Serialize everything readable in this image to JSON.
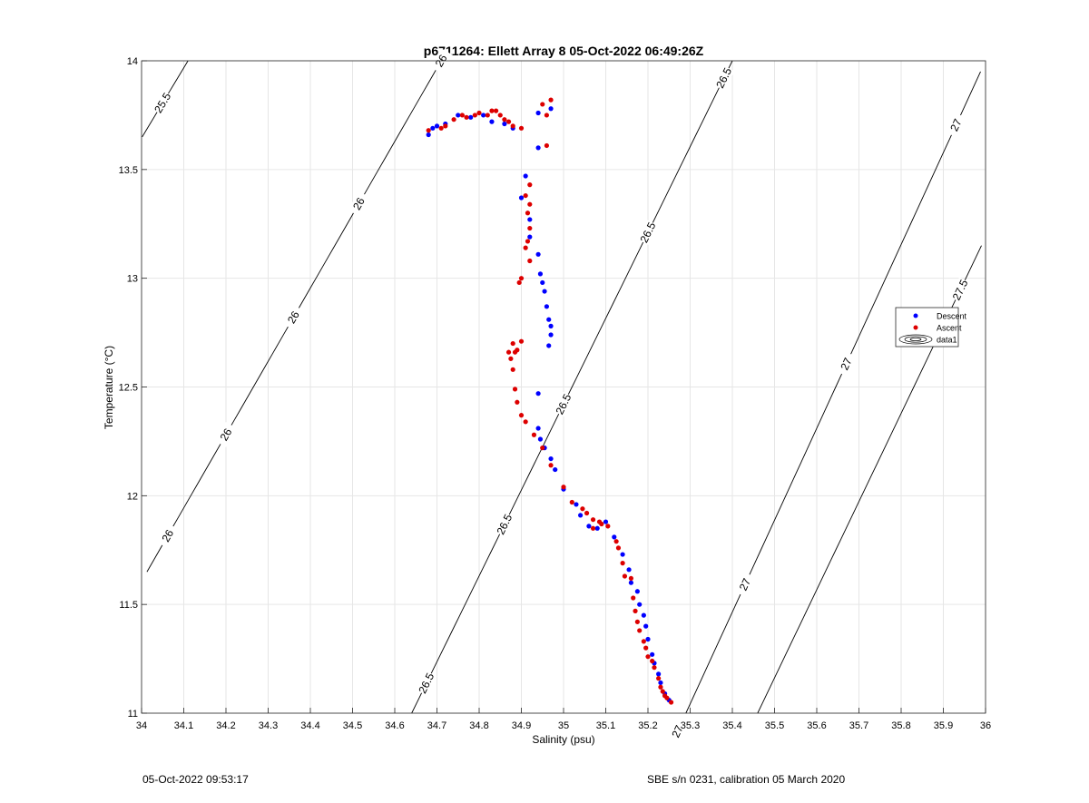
{
  "chart_data": {
    "type": "scatter",
    "title": "p6711264: Ellett Array 8 05-Oct-2022 06:49:26Z",
    "xlabel": "Salinity (psu)",
    "ylabel": "Temperature (°C)",
    "xlim": [
      34,
      36
    ],
    "ylim": [
      11,
      14
    ],
    "x_ticks": [
      34,
      34.1,
      34.2,
      34.3,
      34.4,
      34.5,
      34.6,
      34.7,
      34.8,
      34.9,
      35,
      35.1,
      35.2,
      35.3,
      35.4,
      35.5,
      35.6,
      35.7,
      35.8,
      35.9,
      36
    ],
    "y_ticks": [
      11,
      11.5,
      12,
      12.5,
      13,
      13.5,
      14
    ],
    "grid": true,
    "legend_placement": "right",
    "legend": [
      "Descent",
      "Ascent",
      "data1"
    ],
    "series": [
      {
        "name": "Descent",
        "color": "#0000ff",
        "points": [
          [
            34.68,
            13.66
          ],
          [
            34.69,
            13.69
          ],
          [
            34.7,
            13.7
          ],
          [
            34.72,
            13.71
          ],
          [
            34.75,
            13.75
          ],
          [
            34.78,
            13.74
          ],
          [
            34.81,
            13.75
          ],
          [
            34.83,
            13.72
          ],
          [
            34.86,
            13.71
          ],
          [
            34.88,
            13.69
          ],
          [
            34.94,
            13.76
          ],
          [
            34.97,
            13.78
          ],
          [
            34.94,
            13.6
          ],
          [
            34.91,
            13.47
          ],
          [
            34.9,
            13.37
          ],
          [
            34.92,
            13.27
          ],
          [
            34.92,
            13.19
          ],
          [
            34.94,
            13.11
          ],
          [
            34.945,
            13.02
          ],
          [
            34.95,
            12.98
          ],
          [
            34.955,
            12.94
          ],
          [
            34.96,
            12.87
          ],
          [
            34.965,
            12.81
          ],
          [
            34.97,
            12.78
          ],
          [
            34.97,
            12.74
          ],
          [
            34.965,
            12.69
          ],
          [
            34.94,
            12.47
          ],
          [
            34.94,
            12.31
          ],
          [
            34.945,
            12.26
          ],
          [
            34.955,
            12.22
          ],
          [
            34.97,
            12.17
          ],
          [
            34.98,
            12.12
          ],
          [
            35.0,
            12.03
          ],
          [
            35.03,
            11.96
          ],
          [
            35.04,
            11.91
          ],
          [
            35.06,
            11.86
          ],
          [
            35.08,
            11.85
          ],
          [
            35.1,
            11.88
          ],
          [
            35.12,
            11.81
          ],
          [
            35.14,
            11.73
          ],
          [
            35.155,
            11.66
          ],
          [
            35.16,
            11.6
          ],
          [
            35.175,
            11.56
          ],
          [
            35.18,
            11.5
          ],
          [
            35.19,
            11.45
          ],
          [
            35.195,
            11.4
          ],
          [
            35.2,
            11.34
          ],
          [
            35.21,
            11.27
          ],
          [
            35.215,
            11.23
          ],
          [
            35.225,
            11.18
          ],
          [
            35.23,
            11.14
          ],
          [
            35.24,
            11.09
          ],
          [
            35.25,
            11.06
          ]
        ]
      },
      {
        "name": "Ascent",
        "color": "#dd0000",
        "points": [
          [
            34.68,
            13.68
          ],
          [
            34.71,
            13.69
          ],
          [
            34.72,
            13.7
          ],
          [
            34.74,
            13.73
          ],
          [
            34.76,
            13.75
          ],
          [
            34.77,
            13.74
          ],
          [
            34.79,
            13.75
          ],
          [
            34.8,
            13.76
          ],
          [
            34.82,
            13.75
          ],
          [
            34.83,
            13.77
          ],
          [
            34.84,
            13.77
          ],
          [
            34.85,
            13.75
          ],
          [
            34.86,
            13.73
          ],
          [
            34.87,
            13.72
          ],
          [
            34.88,
            13.7
          ],
          [
            34.9,
            13.69
          ],
          [
            34.95,
            13.8
          ],
          [
            34.97,
            13.82
          ],
          [
            34.96,
            13.75
          ],
          [
            34.96,
            13.61
          ],
          [
            34.92,
            13.43
          ],
          [
            34.91,
            13.38
          ],
          [
            34.92,
            13.34
          ],
          [
            34.915,
            13.3
          ],
          [
            34.92,
            13.23
          ],
          [
            34.915,
            13.17
          ],
          [
            34.91,
            13.14
          ],
          [
            34.92,
            13.08
          ],
          [
            34.9,
            13.0
          ],
          [
            34.895,
            12.98
          ],
          [
            34.87,
            12.66
          ],
          [
            34.88,
            12.7
          ],
          [
            34.875,
            12.63
          ],
          [
            34.885,
            12.66
          ],
          [
            34.89,
            12.67
          ],
          [
            34.9,
            12.71
          ],
          [
            34.88,
            12.58
          ],
          [
            34.885,
            12.49
          ],
          [
            34.89,
            12.43
          ],
          [
            34.9,
            12.37
          ],
          [
            34.91,
            12.34
          ],
          [
            34.93,
            12.28
          ],
          [
            34.95,
            12.22
          ],
          [
            34.97,
            12.14
          ],
          [
            35.0,
            12.04
          ],
          [
            35.02,
            11.97
          ],
          [
            35.045,
            11.94
          ],
          [
            35.055,
            11.92
          ],
          [
            35.07,
            11.89
          ],
          [
            35.085,
            11.88
          ],
          [
            35.07,
            11.85
          ],
          [
            35.09,
            11.87
          ],
          [
            35.105,
            11.86
          ],
          [
            35.125,
            11.79
          ],
          [
            35.13,
            11.76
          ],
          [
            35.14,
            11.69
          ],
          [
            35.145,
            11.63
          ],
          [
            35.16,
            11.62
          ],
          [
            35.165,
            11.53
          ],
          [
            35.17,
            11.47
          ],
          [
            35.175,
            11.42
          ],
          [
            35.18,
            11.38
          ],
          [
            35.19,
            11.33
          ],
          [
            35.195,
            11.3
          ],
          [
            35.2,
            11.26
          ],
          [
            35.21,
            11.24
          ],
          [
            35.215,
            11.21
          ],
          [
            35.225,
            11.16
          ],
          [
            35.23,
            11.12
          ],
          [
            35.235,
            11.1
          ],
          [
            35.24,
            11.08
          ],
          [
            35.245,
            11.07
          ],
          [
            35.255,
            11.05
          ]
        ]
      }
    ],
    "isopycnals": [
      {
        "value": "25.5",
        "x_at_top": 34.11,
        "slope": 0.31,
        "labels": [
          34.05
        ]
      },
      {
        "value": "26",
        "x_at_top": 34.71,
        "slope": 0.2967,
        "labels": [
          34.062,
          34.2,
          34.36,
          34.515,
          34.71
        ]
      },
      {
        "value": "26.5",
        "x_at_top": 35.4,
        "slope": 0.2533,
        "labels": [
          34.675,
          34.86,
          35.0,
          35.2,
          35.38
        ]
      },
      {
        "value": "27",
        "x_at_top": 36.0,
        "slope": 0.2367,
        "labels": [
          35.27,
          35.43,
          35.67,
          35.93
        ]
      },
      {
        "value": "27.5",
        "x_at_top": 36.2,
        "slope": 0.2467,
        "labels": [
          35.94
        ]
      }
    ]
  },
  "footer": {
    "left": "05-Oct-2022 09:53:17",
    "right": "SBE s/n 0231, calibration 05 March 2020"
  }
}
